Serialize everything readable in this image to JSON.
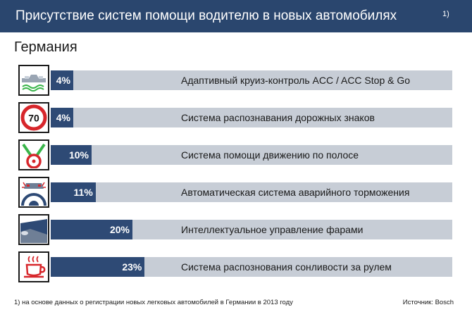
{
  "header": {
    "title": "Присутствие систем помощи водителю в новых автомобилях",
    "footnote_mark": "1)"
  },
  "subtitle": "Германия",
  "chart_data": {
    "type": "bar",
    "orientation": "horizontal",
    "xlim": [
      0,
      100
    ],
    "categories": [
      "Адаптивный круиз-контроль ACC / ACC Stop & Go",
      "Система распознавания дорожных знаков",
      "Система помощи движению по полосе",
      "Автоматическая система аварийного торможения",
      "Интеллектуальное управление фарами",
      "Система распознования сонливости за рулем"
    ],
    "values": [
      4,
      4,
      10,
      11,
      20,
      23
    ],
    "value_labels": [
      "4%",
      "4%",
      "10%",
      "11%",
      "20%",
      "23%"
    ],
    "icons": [
      "adaptive-cruise-icon",
      "speed-limit-sign-icon",
      "lane-assist-icon",
      "emergency-braking-icon",
      "headlight-icon",
      "coffee-cup-icon"
    ],
    "speed_sign_text": "70",
    "colors": {
      "bar": "#2e4a75",
      "track": "#c7cdd6",
      "header": "#2a466e"
    }
  },
  "footer": {
    "note": "1) на основе данных о регистрации новых легковых автомобилей в Германии в 2013 году",
    "source": "Источник: Bosch"
  }
}
